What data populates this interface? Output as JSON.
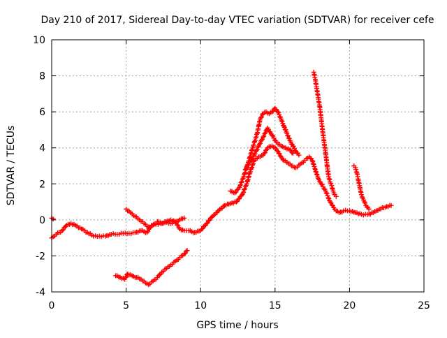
{
  "chart_data": {
    "type": "scatter",
    "title": "Day 210 of 2017, Sidereal Day-to-day VTEC variation (SDTVAR) for receiver cefe",
    "xlabel": "GPS time / hours",
    "ylabel": "SDTVAR / TECUs",
    "xlim": [
      0,
      25
    ],
    "ylim": [
      -4,
      10
    ],
    "xticks": [
      "0",
      "5",
      "10",
      "15",
      "20",
      "25"
    ],
    "yticks": [
      "-4",
      "-2",
      "0",
      "2",
      "4",
      "6",
      "8",
      "10"
    ],
    "grid": true,
    "marker": "+",
    "color": "#ff0000",
    "series": [
      {
        "x": [
          0.0,
          0.3,
          0.7,
          1.0,
          1.3,
          1.6,
          2.0,
          2.4,
          2.8,
          3.2,
          3.6,
          4.0,
          4.4,
          4.8,
          5.2,
          5.6,
          6.0,
          6.4,
          6.7,
          7.0,
          7.3,
          7.6,
          8.0,
          8.3,
          8.6,
          8.9,
          9.2,
          9.6,
          10.0,
          10.4,
          10.8,
          11.2,
          11.6,
          12.0,
          12.4,
          12.8,
          13.1,
          13.3,
          13.6,
          13.9,
          14.2,
          14.5,
          14.8,
          15.0,
          15.2,
          15.4,
          15.6,
          15.8,
          16.1,
          16.4,
          16.7,
          17.0,
          17.3,
          17.5,
          17.7,
          17.9,
          18.1,
          18.4,
          18.7,
          19.0,
          19.3,
          19.6,
          20.0,
          20.4,
          20.8,
          21.2,
          21.6,
          22.0,
          22.4,
          22.8
        ],
        "y": [
          -1.0,
          -0.8,
          -0.6,
          -0.3,
          -0.2,
          -0.3,
          -0.5,
          -0.7,
          -0.9,
          -0.9,
          -0.9,
          -0.8,
          -0.8,
          -0.75,
          -0.75,
          -0.7,
          -0.6,
          -0.7,
          -0.3,
          -0.25,
          -0.2,
          -0.15,
          -0.2,
          -0.1,
          -0.5,
          -0.6,
          -0.6,
          -0.7,
          -0.6,
          -0.2,
          0.2,
          0.5,
          0.8,
          0.9,
          1.0,
          1.4,
          2.0,
          2.6,
          3.3,
          3.5,
          3.6,
          4.0,
          4.1,
          4.0,
          3.8,
          3.5,
          3.3,
          3.2,
          3.0,
          2.9,
          3.1,
          3.3,
          3.5,
          3.3,
          2.8,
          2.3,
          2.0,
          1.6,
          1.0,
          0.6,
          0.4,
          0.5,
          0.5,
          0.4,
          0.3,
          0.3,
          0.4,
          0.6,
          0.7,
          0.8
        ]
      },
      {
        "x": [
          0.0,
          0.1
        ],
        "y": [
          0.1,
          0.05
        ]
      },
      {
        "x": [
          5.0,
          5.3,
          5.6,
          5.9,
          6.2,
          6.5,
          6.8,
          7.1,
          7.4,
          7.7,
          8.0,
          8.3,
          8.6,
          8.9
        ],
        "y": [
          0.6,
          0.4,
          0.2,
          0.0,
          -0.2,
          -0.4,
          -0.3,
          -0.1,
          -0.2,
          -0.1,
          0.0,
          -0.1,
          0.0,
          0.1
        ]
      },
      {
        "x": [
          4.3,
          4.6,
          4.9,
          5.1,
          5.4,
          5.7,
          6.0,
          6.3,
          6.5,
          6.8,
          7.1,
          7.4,
          7.7,
          8.0,
          8.3,
          8.6,
          8.9,
          9.1
        ],
        "y": [
          -3.1,
          -3.2,
          -3.3,
          -3.0,
          -3.1,
          -3.2,
          -3.3,
          -3.5,
          -3.6,
          -3.4,
          -3.2,
          -2.9,
          -2.7,
          -2.5,
          -2.3,
          -2.1,
          -1.9,
          -1.7
        ]
      },
      {
        "x": [
          12.0,
          12.3,
          12.6,
          12.9,
          13.2,
          13.5,
          13.8,
          14.0,
          14.2,
          14.4,
          14.6,
          14.8,
          15.0,
          15.2,
          15.4,
          15.6,
          15.8,
          16.0,
          16.2,
          16.4,
          16.6
        ],
        "y": [
          1.6,
          1.5,
          1.8,
          2.4,
          3.2,
          4.0,
          4.8,
          5.6,
          5.9,
          6.0,
          5.9,
          6.0,
          6.2,
          6.0,
          5.6,
          5.2,
          4.8,
          4.4,
          4.1,
          3.8,
          3.6
        ]
      },
      {
        "x": [
          13.0,
          13.3,
          13.6,
          13.9,
          14.2,
          14.5,
          14.8,
          15.1,
          15.4,
          15.7,
          16.0,
          16.2
        ],
        "y": [
          2.8,
          3.2,
          3.6,
          4.1,
          4.6,
          5.1,
          4.7,
          4.3,
          4.1,
          4.0,
          3.9,
          3.7
        ]
      },
      {
        "x": [
          17.6,
          17.7,
          17.8,
          17.9,
          18.0,
          18.1,
          18.2,
          18.3,
          18.4,
          18.5,
          18.6,
          18.7,
          18.8,
          18.9,
          19.0,
          19.1
        ],
        "y": [
          8.2,
          7.8,
          7.3,
          6.8,
          6.3,
          5.6,
          4.9,
          4.3,
          3.7,
          3.0,
          2.4,
          2.1,
          1.9,
          1.6,
          1.4,
          1.3
        ]
      },
      {
        "x": [
          20.3,
          20.4,
          20.5,
          20.6,
          20.7,
          20.8,
          20.9,
          21.0,
          21.1,
          21.3
        ],
        "y": [
          3.0,
          2.9,
          2.6,
          2.2,
          1.8,
          1.4,
          1.2,
          1.0,
          0.8,
          0.6
        ]
      }
    ]
  }
}
